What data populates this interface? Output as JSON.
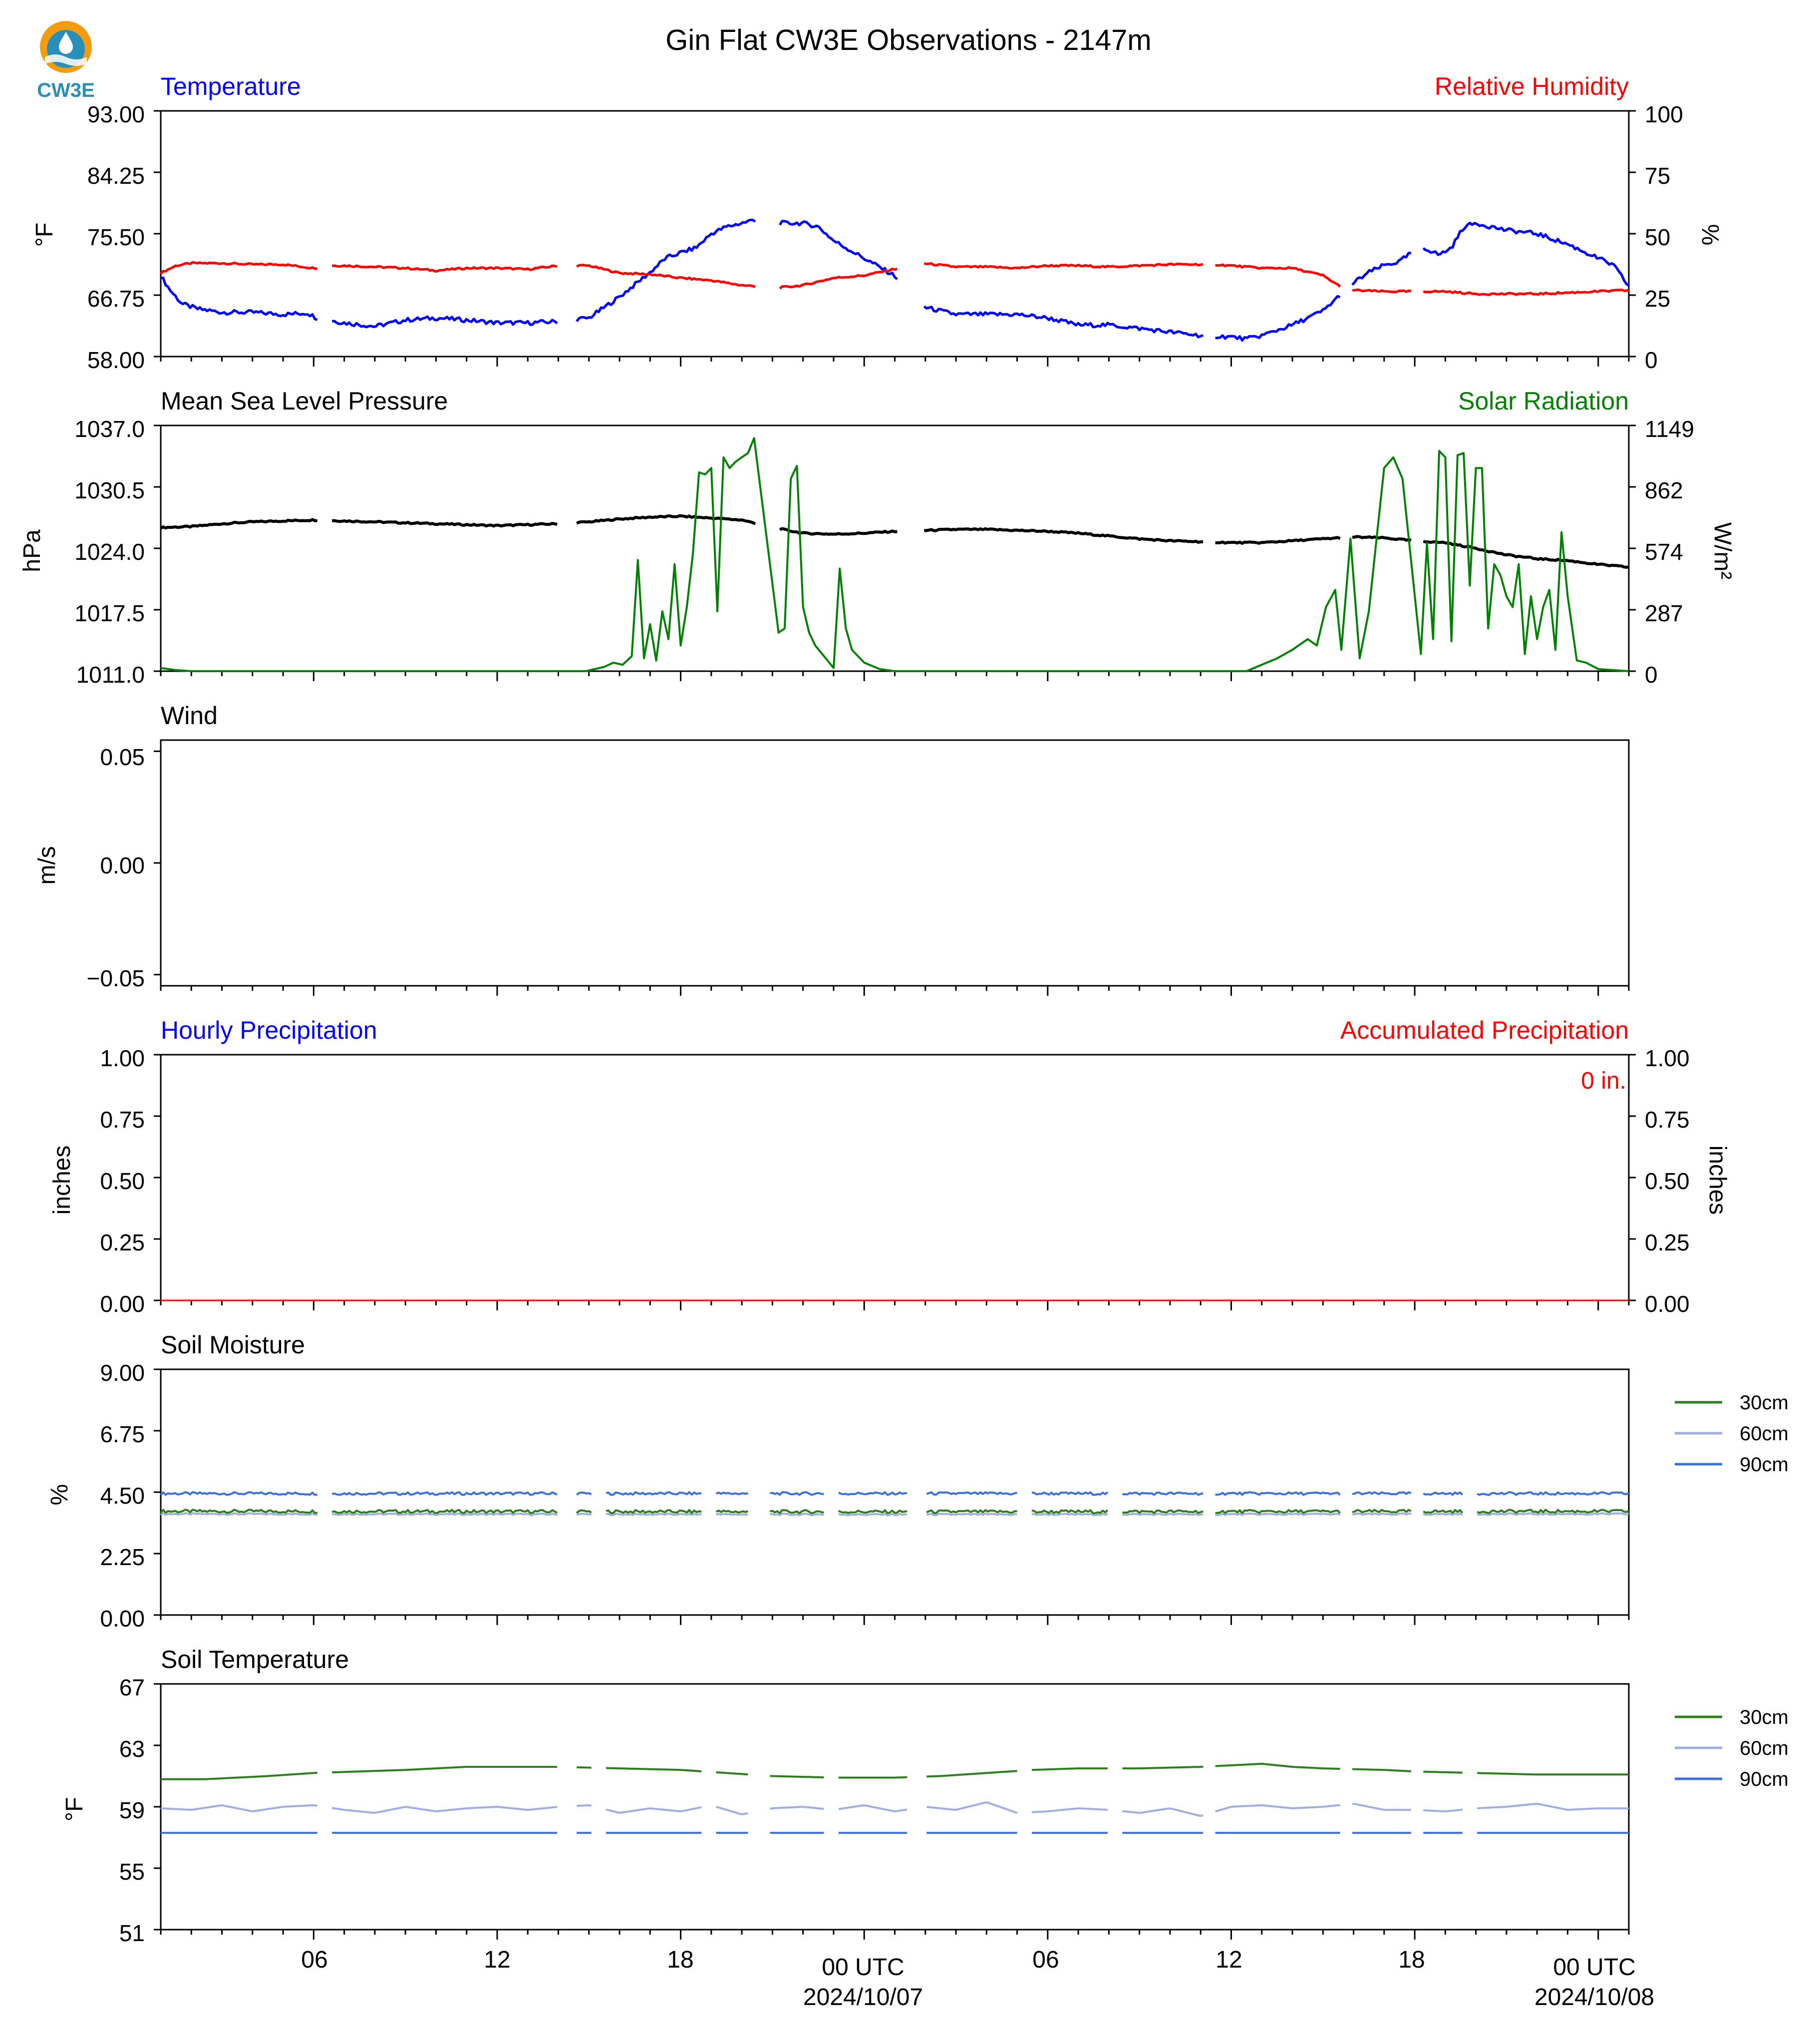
{
  "title": "Gin Flat CW3E Observations - 2147m",
  "logo": {
    "text": "CW3E",
    "colors": {
      "orange": "#f39c12",
      "teal": "#2a8fb8"
    }
  },
  "colors": {
    "temperature": "#0000ff",
    "humidity": "#ff0000",
    "pressure": "#000000",
    "solar": "#008000",
    "precip_hourly": "#0000ff",
    "precip_acc": "#ff0000",
    "soil30": "#2e7d1e",
    "soil60": "#a0aee0",
    "soil90": "#3a6fdc"
  },
  "x_axis": {
    "start_hour": 0,
    "end_hour": 48,
    "ticks": [
      {
        "hour": 5,
        "label": "06",
        "sub": ""
      },
      {
        "hour": 11,
        "label": "12",
        "sub": ""
      },
      {
        "hour": 17,
        "label": "18",
        "sub": ""
      },
      {
        "hour": 23,
        "label": "00 UTC",
        "sub": "2024/10/07"
      },
      {
        "hour": 29,
        "label": "06",
        "sub": ""
      },
      {
        "hour": 35,
        "label": "12",
        "sub": ""
      },
      {
        "hour": 41,
        "label": "18",
        "sub": ""
      },
      {
        "hour": 47,
        "label": "00 UTC",
        "sub": "2024/10/08"
      }
    ]
  },
  "panels": {
    "temp_rh": {
      "left_title": "Temperature",
      "right_title": "Relative Humidity",
      "left_unit": "°F",
      "right_unit": "%",
      "left_ticks": [
        "93.00",
        "84.25",
        "75.50",
        "66.75",
        "58.00"
      ],
      "right_ticks": [
        "100",
        "75",
        "50",
        "25",
        "0"
      ]
    },
    "pressure_solar": {
      "left_title": "Mean Sea Level Pressure",
      "right_title": "Solar Radiation",
      "left_unit": "hPa",
      "right_unit": "W/m²",
      "left_ticks": [
        "1037.0",
        "1030.5",
        "1024.0",
        "1017.5",
        "1011.0"
      ],
      "right_ticks": [
        "1149",
        "862",
        "574",
        "287",
        "0"
      ]
    },
    "wind": {
      "left_title": "Wind",
      "left_unit": "m/s",
      "left_ticks": [
        "0.05",
        "0.00",
        "−0.05"
      ]
    },
    "precip": {
      "left_title": "Hourly Precipitation",
      "right_title": "Accumulated Precipitation",
      "left_unit": "inches",
      "right_unit": "inches",
      "left_ticks": [
        "1.00",
        "0.75",
        "0.50",
        "0.25",
        "0.00"
      ],
      "right_ticks": [
        "1.00",
        "0.75",
        "0.50",
        "0.25",
        "0.00"
      ],
      "annotation": "0 in."
    },
    "soil_moisture": {
      "left_title": "Soil Moisture",
      "left_unit": "%",
      "left_ticks": [
        "9.00",
        "6.75",
        "4.50",
        "2.25",
        "0.00"
      ],
      "legend": [
        "30cm",
        "60cm",
        "90cm"
      ]
    },
    "soil_temp": {
      "left_title": "Soil Temperature",
      "left_unit": "°F",
      "left_ticks": [
        "67",
        "63",
        "59",
        "55",
        "51"
      ],
      "legend": [
        "30cm",
        "60cm",
        "90cm"
      ]
    }
  },
  "chart_data": [
    {
      "type": "line",
      "title": "Temperature / Relative Humidity",
      "x_unit": "hours from start of plot",
      "ylim": [
        58,
        93
      ],
      "y2lim": [
        0,
        100
      ],
      "gaps": [
        [
          5.2,
          5.6
        ],
        [
          13.0,
          13.6
        ],
        [
          19.5,
          20.2
        ],
        [
          24.1,
          24.9
        ],
        [
          34.1,
          34.4
        ],
        [
          38.6,
          38.9
        ],
        [
          40.9,
          41.2
        ]
      ],
      "series": [
        {
          "name": "Temperature",
          "axis": "left",
          "unit": "°F",
          "x": [
            0,
            0.3,
            0.7,
            1.2,
            2,
            3,
            4,
            4.8,
            5.1,
            6,
            7,
            8,
            9,
            10,
            11,
            12,
            13,
            14,
            15,
            16,
            16.5,
            17,
            17.5,
            18,
            18.5,
            19,
            19.4,
            20.3,
            21,
            21.5,
            22,
            23,
            24,
            25,
            26,
            27,
            28,
            29,
            30,
            31,
            32,
            33,
            34,
            35,
            35.5,
            36,
            37,
            38,
            38.5,
            39,
            39.5,
            40,
            40.5,
            40.8,
            41.3,
            41.8,
            42.2,
            42.6,
            43,
            44,
            45,
            46,
            47,
            47.5,
            48
          ],
          "y": [
            69.5,
            67.5,
            65.5,
            64.8,
            64.3,
            64.3,
            64,
            64.2,
            63.5,
            62.8,
            62.3,
            63.2,
            63.5,
            63.2,
            62.8,
            62.8,
            63,
            63.5,
            66.5,
            70,
            72,
            72.8,
            73.5,
            75.5,
            76.5,
            77,
            77.5,
            77,
            77,
            76.5,
            74.5,
            72,
            69.5,
            65,
            64,
            64,
            64,
            63.5,
            62.5,
            62.5,
            62,
            61.5,
            61,
            60.8,
            60.5,
            61,
            62.5,
            64.5,
            66.5,
            68.5,
            70,
            71,
            71.5,
            72.5,
            73.5,
            72.5,
            73.5,
            76.5,
            77,
            76,
            75.5,
            74,
            72,
            71,
            68
          ]
        },
        {
          "name": "Relative Humidity",
          "axis": "right",
          "unit": "%",
          "x": [
            0,
            0.5,
            1,
            2,
            3,
            4,
            5,
            5.6,
            6,
            7,
            8,
            9,
            10,
            11,
            12,
            13,
            14,
            15,
            16,
            17,
            18,
            19,
            20.2,
            21,
            22,
            23,
            24.9,
            26,
            27,
            28,
            29,
            30,
            31,
            32,
            33,
            34,
            34.4,
            35,
            36,
            37,
            38,
            38.5,
            39,
            40,
            41,
            42,
            43,
            44,
            45,
            46,
            47,
            48
          ],
          "y": [
            34,
            37,
            38,
            38,
            37.5,
            37.5,
            36,
            37,
            37,
            36.5,
            36,
            35,
            36,
            36,
            35.5,
            37,
            37,
            34,
            33.5,
            32,
            31,
            29,
            28,
            29,
            32,
            33,
            38,
            36.5,
            36.5,
            36,
            37,
            37,
            36.5,
            37,
            37.5,
            37.5,
            37.5,
            37,
            36,
            36,
            33,
            29,
            27,
            26.5,
            26.5,
            26.5,
            25.5,
            25.5,
            25.5,
            26,
            26.5,
            27
          ]
        }
      ]
    },
    {
      "type": "line",
      "title": "Mean Sea Level Pressure / Solar Radiation",
      "x_unit": "hours from start of plot",
      "ylim": [
        1011,
        1037
      ],
      "y2lim": [
        0,
        1149
      ],
      "gaps": [
        [
          5.2,
          5.6
        ],
        [
          13.0,
          13.6
        ],
        [
          19.5,
          20.2
        ],
        [
          24.1,
          24.9
        ],
        [
          34.1,
          34.4
        ],
        [
          38.6,
          38.9
        ],
        [
          40.9,
          41.2
        ]
      ],
      "series": [
        {
          "name": "Mean Sea Level Pressure",
          "axis": "left",
          "unit": "hPa",
          "x": [
            0,
            1,
            2,
            3,
            4,
            5,
            6,
            7,
            8,
            9,
            10,
            11,
            12,
            13,
            14,
            15,
            16,
            17,
            18,
            19,
            20,
            21,
            22,
            23,
            24,
            25,
            26,
            27,
            28,
            29,
            30,
            31,
            32,
            33,
            34,
            35,
            36,
            37,
            38,
            39,
            40,
            41,
            42,
            43,
            44,
            45,
            46,
            47,
            48
          ],
          "y": [
            1026.2,
            1026.3,
            1026.6,
            1026.8,
            1026.9,
            1027.0,
            1026.9,
            1026.8,
            1026.7,
            1026.6,
            1026.5,
            1026.4,
            1026.5,
            1026.6,
            1026.8,
            1027.1,
            1027.3,
            1027.4,
            1027.2,
            1027.0,
            1026.2,
            1025.6,
            1025.5,
            1025.6,
            1025.8,
            1025.9,
            1026.0,
            1026.0,
            1025.9,
            1025.8,
            1025.6,
            1025.3,
            1025.0,
            1024.8,
            1024.7,
            1024.6,
            1024.6,
            1024.8,
            1025.0,
            1025.2,
            1025.1,
            1024.8,
            1024.6,
            1024.0,
            1023.3,
            1022.9,
            1022.7,
            1022.3,
            1022.0
          ]
        },
        {
          "name": "Solar Radiation",
          "axis": "right",
          "unit": "W/m²",
          "x": [
            0,
            0.5,
            1,
            13.9,
            14.5,
            14.8,
            15.1,
            15.4,
            15.6,
            15.8,
            16.0,
            16.2,
            16.4,
            16.6,
            16.8,
            17.0,
            17.2,
            17.4,
            17.6,
            17.8,
            18.0,
            18.2,
            18.4,
            18.6,
            18.8,
            19.0,
            19.2,
            19.4,
            20.2,
            20.4,
            20.6,
            20.8,
            21.0,
            21.2,
            21.4,
            22.0,
            22.2,
            22.4,
            22.6,
            23.0,
            23.5,
            24.0,
            33.0,
            34.5,
            35.5,
            36.5,
            37.0,
            37.5,
            37.8,
            38.1,
            38.4,
            38.6,
            38.9,
            39.2,
            39.5,
            40.0,
            40.3,
            40.6,
            41.2,
            41.4,
            41.6,
            41.8,
            42.0,
            42.2,
            42.4,
            42.6,
            42.8,
            43.0,
            43.2,
            43.4,
            43.6,
            43.8,
            44.0,
            44.2,
            44.4,
            44.6,
            44.8,
            45.0,
            45.2,
            45.4,
            45.6,
            45.8,
            46.0,
            46.3,
            46.6,
            47.0,
            48.0
          ],
          "y": [
            15,
            5,
            0,
            0,
            20,
            40,
            30,
            70,
            520,
            60,
            220,
            50,
            280,
            150,
            500,
            120,
            300,
            550,
            930,
            920,
            950,
            280,
            1000,
            950,
            980,
            1000,
            1020,
            1090,
            180,
            200,
            900,
            960,
            300,
            180,
            120,
            15,
            480,
            200,
            100,
            40,
            10,
            0,
            0,
            0,
            0,
            60,
            100,
            150,
            120,
            300,
            380,
            100,
            620,
            60,
            280,
            950,
            1000,
            900,
            80,
            600,
            150,
            1030,
            1000,
            140,
            1010,
            1020,
            400,
            950,
            950,
            200,
            500,
            450,
            350,
            300,
            500,
            80,
            350,
            150,
            300,
            380,
            100,
            650,
            350,
            50,
            40,
            10,
            0
          ]
        }
      ]
    },
    {
      "type": "line",
      "title": "Wind",
      "ylim": [
        -0.055,
        0.055
      ],
      "series": []
    },
    {
      "type": "line",
      "title": "Hourly Precipitation / Accumulated Precipitation",
      "x_unit": "hours from start of plot",
      "ylim": [
        0,
        1
      ],
      "y2lim": [
        0,
        1
      ],
      "series": [
        {
          "name": "Hourly Precipitation",
          "axis": "left",
          "x": [
            0,
            48
          ],
          "y": [
            0,
            0
          ]
        },
        {
          "name": "Accumulated Precipitation",
          "axis": "right",
          "x": [
            0,
            48
          ],
          "y": [
            0,
            0
          ]
        }
      ]
    },
    {
      "type": "line",
      "title": "Soil Moisture",
      "x_unit": "hours from start of plot",
      "ylim": [
        0,
        9
      ],
      "gaps": [
        [
          5.2,
          5.6
        ],
        [
          13.0,
          13.6
        ],
        [
          14.1,
          14.5
        ],
        [
          17.7,
          18.1
        ],
        [
          19.2,
          19.9
        ],
        [
          21.7,
          22.1
        ],
        [
          24.4,
          25.0
        ],
        [
          28.0,
          28.4
        ],
        [
          31.0,
          31.4
        ],
        [
          34.1,
          34.4
        ],
        [
          38.6,
          38.9
        ],
        [
          40.9,
          41.2
        ],
        [
          42.6,
          43.0
        ]
      ],
      "series": [
        {
          "name": "30cm",
          "x": [
            0,
            24,
            48
          ],
          "y": [
            3.8,
            3.78,
            3.8
          ]
        },
        {
          "name": "60cm",
          "x": [
            0,
            24,
            48
          ],
          "y": [
            3.7,
            3.68,
            3.7
          ]
        },
        {
          "name": "90cm",
          "x": [
            0,
            24,
            48
          ],
          "y": [
            4.45,
            4.45,
            4.45
          ]
        }
      ]
    },
    {
      "type": "line",
      "title": "Soil Temperature",
      "x_unit": "hours from start of plot",
      "ylim": [
        51,
        67
      ],
      "gaps": [
        [
          5.2,
          5.6
        ],
        [
          13.0,
          13.6
        ],
        [
          14.1,
          14.5
        ],
        [
          17.7,
          18.1
        ],
        [
          19.2,
          19.9
        ],
        [
          21.7,
          22.1
        ],
        [
          24.4,
          25.0
        ],
        [
          28.0,
          28.4
        ],
        [
          31.0,
          31.4
        ],
        [
          34.1,
          34.4
        ],
        [
          38.6,
          38.9
        ],
        [
          40.9,
          41.2
        ],
        [
          42.6,
          43.0
        ]
      ],
      "series": [
        {
          "name": "30cm",
          "x": [
            0,
            1.5,
            3.5,
            5,
            6.5,
            8,
            10,
            13,
            15,
            17,
            18.5,
            20,
            22,
            24,
            25.5,
            27,
            28.5,
            30,
            32,
            34,
            35,
            36,
            37,
            38,
            40,
            41,
            43,
            45,
            48
          ],
          "y": [
            60.8,
            60.8,
            61.0,
            61.2,
            61.3,
            61.4,
            61.6,
            61.6,
            61.5,
            61.4,
            61.2,
            61.0,
            60.9,
            60.9,
            61.0,
            61.2,
            61.4,
            61.5,
            61.5,
            61.6,
            61.7,
            61.8,
            61.6,
            61.5,
            61.4,
            61.3,
            61.2,
            61.1,
            61.1
          ]
        },
        {
          "name": "60cm",
          "x": [
            0,
            1,
            2,
            3,
            4,
            5,
            6,
            7,
            8,
            9,
            10,
            11,
            12,
            13,
            14,
            15,
            16,
            17,
            18,
            19,
            20,
            21,
            22,
            23,
            24,
            25,
            26,
            27,
            28,
            29,
            30,
            31,
            32,
            33,
            34,
            35,
            36,
            37,
            38,
            39,
            40,
            41,
            42,
            43,
            44,
            45,
            46,
            47,
            48
          ],
          "y": [
            58.9,
            58.8,
            59.1,
            58.7,
            59.0,
            59.1,
            58.8,
            58.6,
            59.0,
            58.7,
            58.9,
            59.0,
            58.8,
            59.0,
            59.1,
            58.6,
            58.9,
            58.7,
            59.1,
            58.5,
            58.9,
            59.0,
            58.8,
            59.1,
            58.7,
            59.0,
            58.8,
            59.3,
            58.6,
            58.7,
            58.9,
            58.8,
            58.6,
            58.9,
            58.4,
            59.0,
            59.1,
            58.9,
            59.0,
            59.2,
            58.8,
            58.8,
            58.7,
            58.9,
            59.0,
            59.2,
            58.8,
            58.9,
            58.9
          ]
        },
        {
          "name": "90cm",
          "x": [
            0,
            48
          ],
          "y": [
            57.3,
            57.3
          ]
        }
      ]
    }
  ]
}
